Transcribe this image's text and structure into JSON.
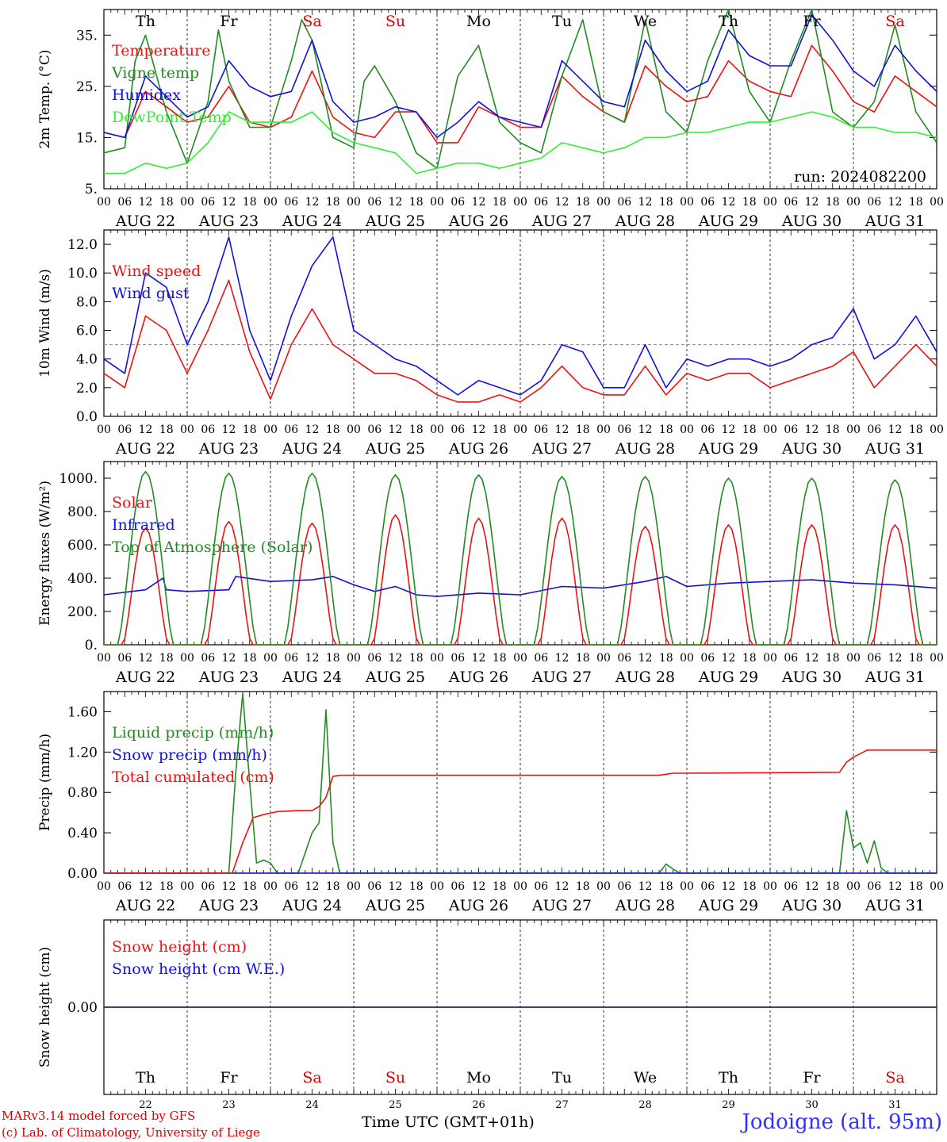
{
  "run_label": "run: 2024082200",
  "station_label": "Jodoigne (alt. 95m)",
  "credit_line1": "MARv3.14 model forced by GFS",
  "credit_line2": "(c) Lab. of Climatology, University of Liege",
  "x_axis_title": "Time UTC (GMT+01h)",
  "hour_ticks": [
    "00",
    "06",
    "12",
    "18"
  ],
  "day_labels": [
    "AUG 22",
    "AUG 23",
    "AUG 24",
    "AUG 25",
    "AUG 26",
    "AUG 27",
    "AUG 28",
    "AUG 29",
    "AUG 30",
    "AUG 31"
  ],
  "weekdays": [
    "Th",
    "Fr",
    "Sa",
    "Su",
    "Mo",
    "Tu",
    "We",
    "Th",
    "Fr",
    "Sa"
  ],
  "day_numbers": [
    "22",
    "23",
    "24",
    "25",
    "26",
    "27",
    "28",
    "29",
    "30",
    "31"
  ],
  "weekend_color": "#e00000",
  "chart_data": [
    {
      "type": "line",
      "ylabel": "2m Temp. (°C)",
      "ylim": [
        5,
        40
      ],
      "yticks": [
        "5.",
        "15.",
        "25.",
        "35."
      ],
      "xlim_hours": [
        0,
        240
      ],
      "series": [
        {
          "name": "Temperature",
          "color": "#ee1111",
          "x": [
            0,
            6,
            12,
            18,
            24,
            30,
            36,
            42,
            48,
            54,
            60,
            66,
            72,
            78,
            84,
            90,
            96,
            102,
            108,
            114,
            120,
            126,
            132,
            138,
            144,
            150,
            156,
            162,
            168,
            174,
            180,
            186,
            192,
            198,
            204,
            210,
            216,
            222,
            228,
            234,
            240
          ],
          "y": [
            16,
            15,
            24,
            21,
            18,
            19,
            25,
            18,
            17,
            19,
            28,
            19,
            16,
            15,
            20,
            20,
            14,
            14,
            21,
            19,
            17,
            17,
            27,
            23,
            20,
            18,
            29,
            25,
            22,
            23,
            30,
            26,
            24,
            23,
            33,
            28,
            22,
            20,
            27,
            24,
            21
          ]
        },
        {
          "name": "Vigne temp",
          "color": "#228b22",
          "x": [
            0,
            6,
            9,
            12,
            18,
            24,
            30,
            33,
            36,
            42,
            48,
            54,
            57,
            60,
            66,
            72,
            75,
            78,
            84,
            90,
            96,
            102,
            108,
            114,
            120,
            126,
            132,
            138,
            144,
            150,
            156,
            162,
            168,
            174,
            180,
            186,
            192,
            198,
            204,
            210,
            216,
            222,
            228,
            234,
            240
          ],
          "y": [
            12,
            13,
            30,
            35,
            20,
            10,
            22,
            36,
            26,
            17,
            17,
            30,
            38,
            34,
            15,
            13,
            26,
            29,
            22,
            12,
            9,
            27,
            33,
            18,
            14,
            12,
            27,
            38,
            20,
            18,
            38,
            20,
            16,
            30,
            40,
            24,
            18,
            30,
            40,
            20,
            17,
            22,
            37,
            20,
            14
          ]
        },
        {
          "name": "Humidex",
          "color": "#1111dd",
          "x": [
            0,
            6,
            12,
            18,
            24,
            30,
            36,
            42,
            48,
            54,
            60,
            66,
            72,
            78,
            84,
            90,
            96,
            102,
            108,
            114,
            120,
            126,
            132,
            138,
            144,
            150,
            156,
            162,
            168,
            174,
            180,
            186,
            192,
            198,
            204,
            210,
            216,
            222,
            228,
            234,
            240
          ],
          "y": [
            16,
            15,
            27,
            23,
            19,
            21,
            30,
            25,
            23,
            24,
            34,
            22,
            18,
            19,
            21,
            20,
            15,
            18,
            22,
            19,
            18,
            17,
            30,
            26,
            22,
            21,
            34,
            28,
            24,
            26,
            36,
            31,
            29,
            29,
            39,
            34,
            28,
            25,
            33,
            28,
            24
          ]
        },
        {
          "name": "DewPoint Temp",
          "color": "#33ee33",
          "x": [
            0,
            6,
            12,
            18,
            24,
            30,
            36,
            42,
            48,
            54,
            60,
            66,
            72,
            78,
            84,
            90,
            96,
            102,
            108,
            114,
            120,
            126,
            132,
            138,
            144,
            150,
            156,
            162,
            168,
            174,
            180,
            186,
            192,
            198,
            204,
            210,
            216,
            222,
            228,
            234,
            240
          ],
          "y": [
            8,
            8,
            10,
            9,
            10,
            14,
            20,
            18,
            18,
            18,
            20,
            16,
            14,
            13,
            12,
            8,
            9,
            10,
            10,
            9,
            10,
            11,
            14,
            13,
            12,
            13,
            15,
            15,
            16,
            16,
            17,
            18,
            18,
            19,
            20,
            19,
            17,
            17,
            16,
            16,
            15
          ]
        }
      ]
    },
    {
      "type": "line",
      "ylabel": "10m Wind (m/s)",
      "ylim": [
        0,
        13
      ],
      "yticks": [
        "0.0",
        "2.0",
        "4.0",
        "6.0",
        "8.0",
        "10.0",
        "12.0"
      ],
      "reference_line": 5,
      "xlim_hours": [
        0,
        240
      ],
      "series": [
        {
          "name": "Wind speed",
          "color": "#ee1111",
          "x": [
            0,
            6,
            12,
            18,
            24,
            30,
            36,
            42,
            48,
            54,
            60,
            66,
            72,
            78,
            84,
            90,
            96,
            102,
            108,
            114,
            120,
            126,
            132,
            138,
            144,
            150,
            156,
            162,
            168,
            174,
            180,
            186,
            192,
            198,
            204,
            210,
            216,
            222,
            228,
            234,
            240
          ],
          "y": [
            3,
            2,
            7,
            6,
            3,
            6,
            9.5,
            4.5,
            1.2,
            5,
            7.5,
            5,
            4,
            3,
            3,
            2.5,
            1.5,
            1,
            1,
            1.5,
            1,
            2,
            3.5,
            2,
            1.5,
            1.5,
            3.5,
            1.5,
            3,
            2.5,
            3,
            3,
            2,
            2.5,
            3,
            3.5,
            4.5,
            2,
            3.5,
            5,
            3.5
          ]
        },
        {
          "name": "Wind gust",
          "color": "#1111dd",
          "x": [
            0,
            6,
            12,
            18,
            24,
            30,
            36,
            42,
            48,
            54,
            60,
            66,
            72,
            78,
            84,
            90,
            96,
            102,
            108,
            114,
            120,
            126,
            132,
            138,
            144,
            150,
            156,
            162,
            168,
            174,
            180,
            186,
            192,
            198,
            204,
            210,
            216,
            222,
            228,
            234,
            240
          ],
          "y": [
            4,
            3,
            10,
            9,
            5,
            8,
            12.5,
            6,
            2.5,
            7,
            10.5,
            12.5,
            6,
            5,
            4,
            3.5,
            2.5,
            1.5,
            2.5,
            2,
            1.5,
            2.5,
            5,
            4.5,
            2,
            2,
            5,
            2,
            4,
            3.5,
            4,
            4,
            3.5,
            4,
            5,
            5.5,
            7.5,
            4,
            5,
            7,
            4.5
          ]
        }
      ]
    },
    {
      "type": "line",
      "ylabel": "Energy fluxes (W/m²)",
      "ylim": [
        0,
        1100
      ],
      "yticks": [
        "0.",
        "200.",
        "400.",
        "600.",
        "800.",
        "1000."
      ],
      "xlim_hours": [
        0,
        240
      ],
      "series": [
        {
          "name": "Solar",
          "color": "#ee1111",
          "peaks": [
            700,
            740,
            730,
            780,
            760,
            760,
            710,
            720,
            720,
            720
          ]
        },
        {
          "name": "Infrared",
          "color": "#1111dd",
          "x": [
            0,
            12,
            17,
            18,
            24,
            36,
            38,
            48,
            60,
            66,
            72,
            78,
            84,
            90,
            96,
            108,
            120,
            132,
            144,
            156,
            162,
            168,
            180,
            192,
            204,
            216,
            228,
            240
          ],
          "y": [
            300,
            330,
            400,
            330,
            320,
            330,
            410,
            380,
            390,
            410,
            360,
            320,
            350,
            300,
            290,
            310,
            300,
            350,
            340,
            380,
            410,
            350,
            370,
            380,
            390,
            370,
            360,
            340
          ]
        },
        {
          "name": "Top of Atmosphere (Solar)",
          "color": "#228b22",
          "peaks": [
            1040,
            1030,
            1030,
            1020,
            1020,
            1010,
            1010,
            1000,
            1000,
            990
          ]
        }
      ]
    },
    {
      "type": "line",
      "ylabel": "Precip (mm/h)",
      "ylim": [
        0,
        1.8
      ],
      "yticks": [
        "0.00",
        "0.40",
        "0.80",
        "1.20",
        "1.60"
      ],
      "xlim_hours": [
        0,
        240
      ],
      "series": [
        {
          "name": "Liquid precip (mm/h)",
          "color": "#228b22",
          "x": [
            0,
            36,
            38,
            40,
            42,
            44,
            46,
            48,
            50,
            56,
            60,
            62,
            64,
            66,
            68,
            160,
            162,
            164,
            166,
            212,
            214,
            216,
            218,
            220,
            222,
            224,
            226,
            240
          ],
          "y": [
            0,
            0,
            1.0,
            1.78,
            0.9,
            0.1,
            0.13,
            0.1,
            0,
            0,
            0.4,
            0.5,
            1.62,
            0.3,
            0,
            0,
            0.09,
            0.04,
            0,
            0,
            0.62,
            0.25,
            0.3,
            0.1,
            0.32,
            0.05,
            0,
            0
          ]
        },
        {
          "name": "Snow precip (mm/h)",
          "color": "#1111dd",
          "x": [
            0,
            240
          ],
          "y": [
            0,
            0
          ]
        },
        {
          "name": "Total cumulated (cm)",
          "color": "#ee1111",
          "x": [
            0,
            37,
            40,
            43,
            46,
            50,
            56,
            60,
            62,
            64,
            66,
            68,
            96,
            160,
            162,
            164,
            212,
            214,
            216,
            220,
            240
          ],
          "y": [
            0,
            0,
            0.3,
            0.55,
            0.58,
            0.61,
            0.62,
            0.62,
            0.66,
            0.75,
            0.96,
            0.97,
            0.97,
            0.97,
            0.98,
            0.99,
            1.0,
            1.1,
            1.15,
            1.22,
            1.22
          ]
        }
      ]
    },
    {
      "type": "line",
      "ylabel": "Snow height (cm)",
      "ylim": [
        -1,
        1
      ],
      "yticks": [
        "0.00"
      ],
      "xlim_hours": [
        0,
        240
      ],
      "series": [
        {
          "name": "Snow height (cm)",
          "color": "#ee1111",
          "x": [
            0,
            240
          ],
          "y": [
            0,
            0
          ]
        },
        {
          "name": "Snow height (cm W.E.)",
          "color": "#1111dd",
          "x": [
            0,
            240
          ],
          "y": [
            0,
            0
          ]
        }
      ]
    }
  ]
}
